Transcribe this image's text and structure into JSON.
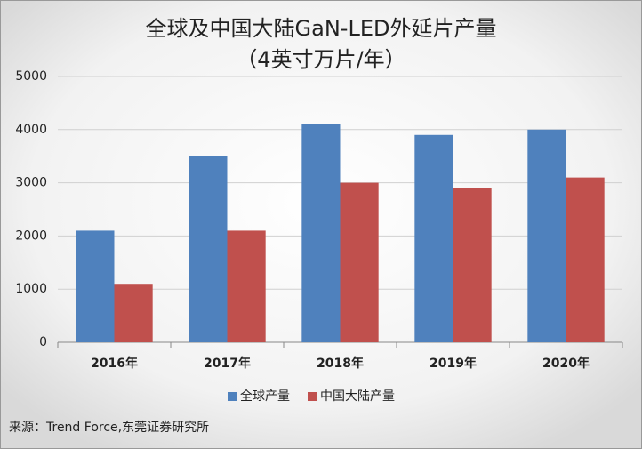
{
  "chart_data": {
    "type": "bar",
    "title": "全球及中国大陆GaN-LED外延片产量",
    "subtitle": "（4英寸万片/年）",
    "categories": [
      "2016年",
      "2017年",
      "2018年",
      "2019年",
      "2020年"
    ],
    "series": [
      {
        "name": "全球产量",
        "color": "#4f81bd",
        "values": [
          2100,
          3500,
          4100,
          3900,
          4000
        ]
      },
      {
        "name": "中国大陆产量",
        "color": "#c0504d",
        "values": [
          1100,
          2100,
          3000,
          2900,
          3100
        ]
      }
    ],
    "ylim": [
      0,
      5000
    ],
    "yticks": [
      0,
      1000,
      2000,
      3000,
      4000,
      5000
    ],
    "grid": true,
    "legend": "bottom",
    "source": "来源：Trend Force,东莞证券研究所"
  }
}
